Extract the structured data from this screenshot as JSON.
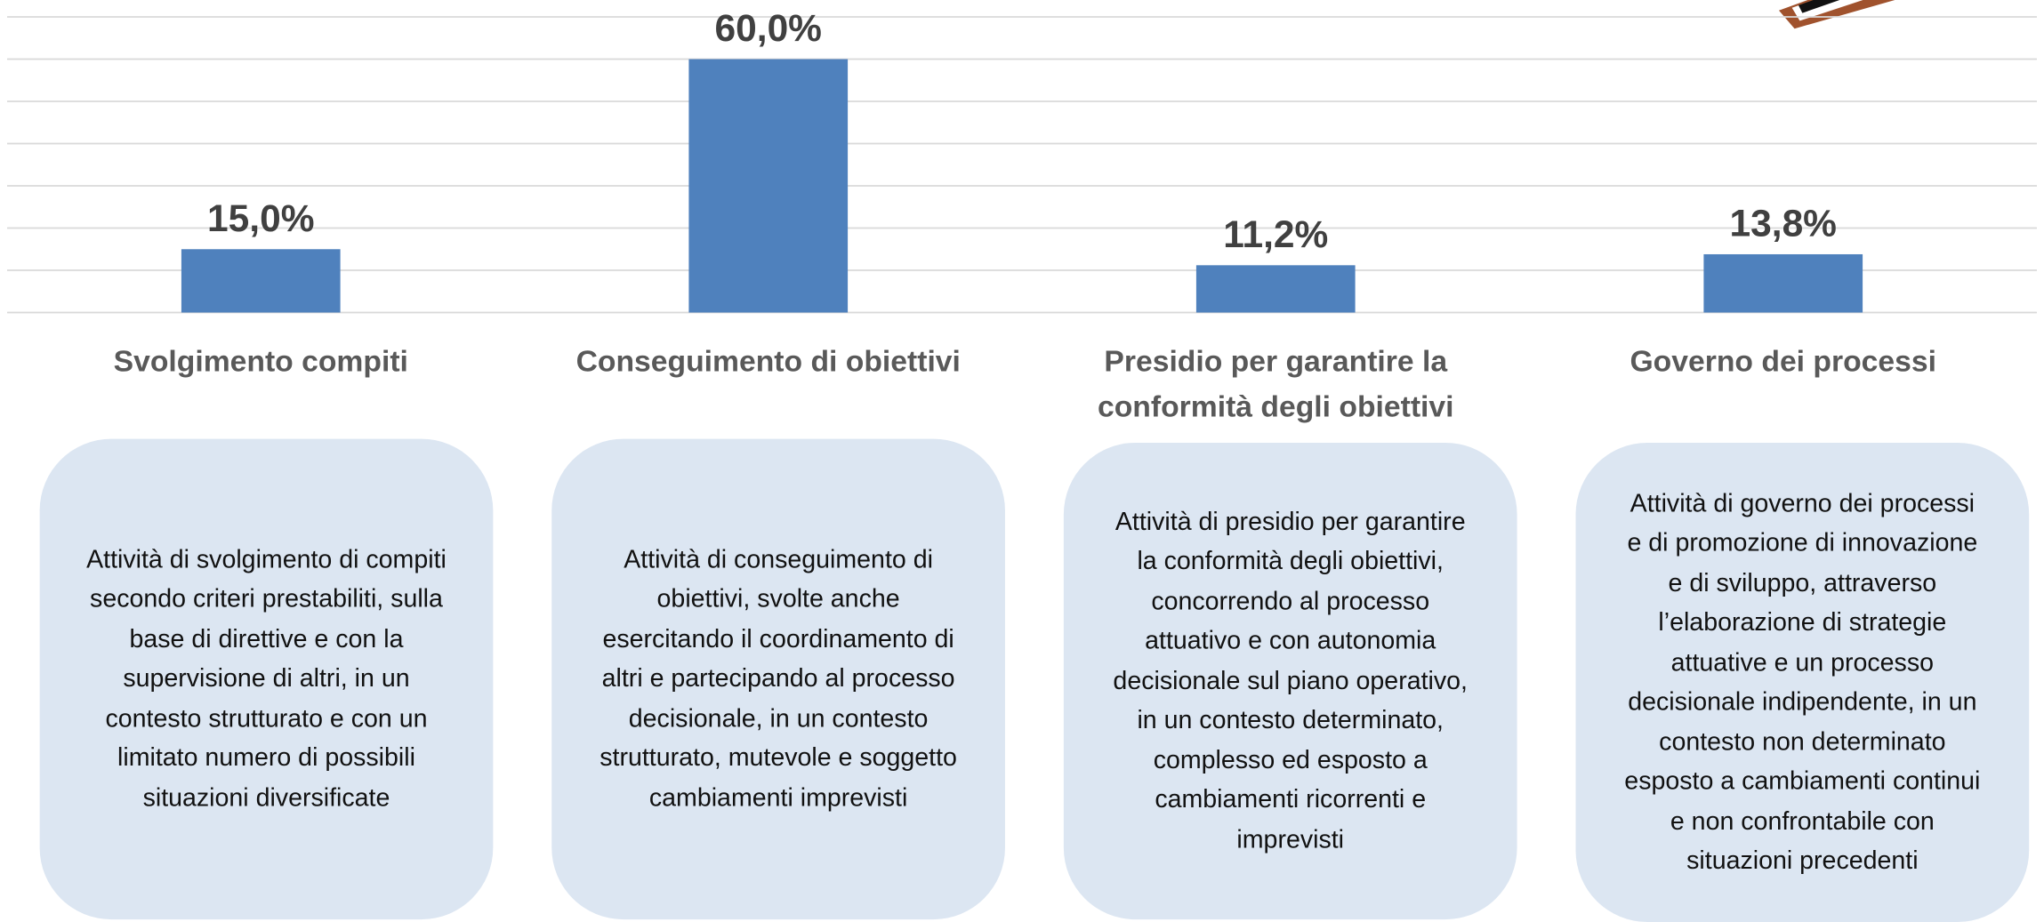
{
  "chart_data": {
    "type": "bar",
    "categories": [
      "Svolgimento compiti",
      "Conseguimento di obiettivi",
      "Presidio per garantire la conformità degli obiettivi",
      "Governo dei processi"
    ],
    "values": [
      15.0,
      60.0,
      11.2,
      13.8
    ],
    "value_labels": [
      "15,0%",
      "60,0%",
      "11,2%",
      "13,8%"
    ],
    "color": "#4f81bd",
    "ylim": [
      0,
      70
    ],
    "yticks": [
      0,
      10,
      20,
      30,
      40,
      50,
      60,
      70
    ],
    "grid": true,
    "descriptions": [
      "Attività di svolgimento di compiti secondo criteri prestabiliti, sulla base di direttive e con la supervisione di altri, in un contesto strutturato e con un limitato numero di possibili situazioni diversificate",
      "Attività di conseguimento di obiettivi, svolte anche esercitando il coordinamento di altri e partecipando al processo decisionale, in un contesto strutturato, mutevole e soggetto cambiamenti imprevisti",
      "Attività di presidio per garantire la conformità degli obiettivi, concorrendo al processo attuativo e con autonomia decisionale sul piano operativo, in un contesto determinato, complesso ed esposto a cambiamenti ricorrenti e imprevisti",
      "Attività di governo dei processi e di promozione di innovazione e di sviluppo, attraverso l’elaborazione di strategie attuative e un processo decisionale indipendente, in un contesto non determinato esposto a cambiamenti continui e non confrontabile con situazioni precedenti"
    ]
  }
}
